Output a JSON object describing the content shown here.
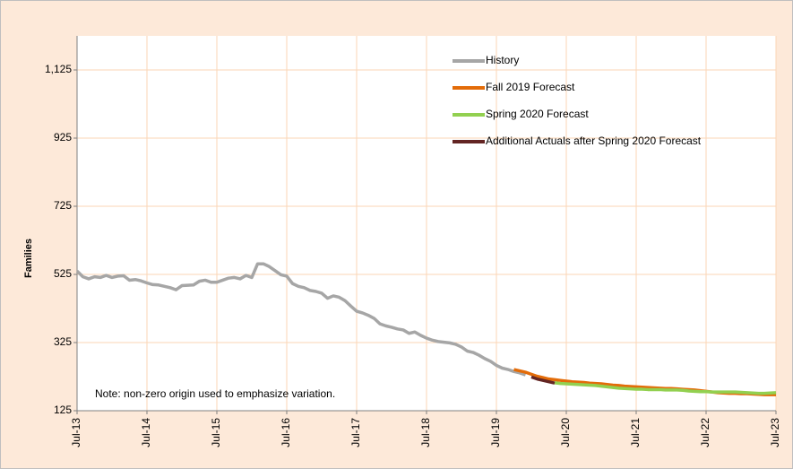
{
  "chart_data": {
    "type": "line",
    "y_label": "Families",
    "annotation": "Note: non-zero origin used to emphasize variation.",
    "legend": "upper right",
    "grid": true,
    "ylim": [
      125,
      1225
    ],
    "yticks": [
      125,
      325,
      525,
      725,
      925,
      {
        "value": 1125,
        "label": "1,125"
      }
    ],
    "categories": [
      "Jul-13",
      null,
      null,
      null,
      null,
      null,
      null,
      null,
      null,
      null,
      null,
      null,
      "Jul-14",
      null,
      null,
      null,
      null,
      null,
      null,
      null,
      null,
      null,
      null,
      null,
      "Jul-15",
      null,
      null,
      null,
      null,
      null,
      null,
      null,
      null,
      null,
      null,
      null,
      "Jul-16",
      null,
      null,
      null,
      null,
      null,
      null,
      null,
      null,
      null,
      null,
      null,
      "Jul-17",
      null,
      null,
      null,
      null,
      null,
      null,
      null,
      null,
      null,
      null,
      null,
      "Jul-18",
      null,
      null,
      null,
      null,
      null,
      null,
      null,
      null,
      null,
      null,
      null,
      "Jul-19",
      null,
      null,
      null,
      null,
      null,
      null,
      null,
      null,
      null,
      null,
      null,
      "Jul-20",
      null,
      null,
      null,
      null,
      null,
      null,
      null,
      null,
      null,
      null,
      null,
      "Jul-21",
      null,
      null,
      null,
      null,
      null,
      null,
      null,
      null,
      null,
      null,
      null,
      "Jul-22",
      null,
      null,
      null,
      null,
      null,
      null,
      null,
      null,
      null,
      null,
      null,
      "Jul-23"
    ],
    "series": [
      {
        "name": "History",
        "color": "#a6a6a6",
        "values": [
          535,
          518,
          512,
          518,
          516,
          522,
          516,
          520,
          521,
          508,
          510,
          506,
          500,
          495,
          494,
          490,
          486,
          480,
          492,
          493,
          494,
          505,
          508,
          502,
          502,
          508,
          514,
          516,
          512,
          522,
          516,
          556,
          556,
          548,
          536,
          524,
          520,
          498,
          490,
          486,
          478,
          475,
          470,
          455,
          462,
          458,
          448,
          432,
          417,
          412,
          405,
          396,
          380,
          374,
          370,
          365,
          362,
          352,
          356,
          346,
          338,
          332,
          328,
          326,
          324,
          320,
          312,
          300,
          296,
          288,
          278,
          270,
          258,
          250,
          246,
          240,
          236,
          230,
          null,
          null,
          null,
          null,
          null,
          null,
          null,
          null,
          null,
          null,
          null,
          null,
          null,
          null,
          null,
          null,
          null,
          null,
          null,
          null,
          null,
          null,
          null,
          null,
          null,
          null,
          null,
          null,
          null,
          null,
          null,
          null,
          null,
          null,
          null,
          null,
          null,
          null,
          null,
          null,
          null,
          null,
          null
        ]
      },
      {
        "name": "Fall 2019 Forecast",
        "color": "#e36c09",
        "values": [
          null,
          null,
          null,
          null,
          null,
          null,
          null,
          null,
          null,
          null,
          null,
          null,
          null,
          null,
          null,
          null,
          null,
          null,
          null,
          null,
          null,
          null,
          null,
          null,
          null,
          null,
          null,
          null,
          null,
          null,
          null,
          null,
          null,
          null,
          null,
          null,
          null,
          null,
          null,
          null,
          null,
          null,
          null,
          null,
          null,
          null,
          null,
          null,
          null,
          null,
          null,
          null,
          null,
          null,
          null,
          null,
          null,
          null,
          null,
          null,
          null,
          null,
          null,
          null,
          null,
          null,
          null,
          null,
          null,
          null,
          null,
          null,
          null,
          null,
          null,
          246,
          242,
          238,
          232,
          226,
          222,
          218,
          216,
          214,
          212,
          210,
          209,
          208,
          206,
          205,
          204,
          202,
          200,
          199,
          197,
          196,
          195,
          194,
          193,
          192,
          191,
          190,
          190,
          189,
          188,
          187,
          186,
          184,
          182,
          180,
          178,
          177,
          176,
          176,
          175,
          175,
          174,
          173,
          172,
          172,
          172
        ]
      },
      {
        "name": "Spring 2020 Forecast",
        "color": "#92d050",
        "values": [
          null,
          null,
          null,
          null,
          null,
          null,
          null,
          null,
          null,
          null,
          null,
          null,
          null,
          null,
          null,
          null,
          null,
          null,
          null,
          null,
          null,
          null,
          null,
          null,
          null,
          null,
          null,
          null,
          null,
          null,
          null,
          null,
          null,
          null,
          null,
          null,
          null,
          null,
          null,
          null,
          null,
          null,
          null,
          null,
          null,
          null,
          null,
          null,
          null,
          null,
          null,
          null,
          null,
          null,
          null,
          null,
          null,
          null,
          null,
          null,
          null,
          null,
          null,
          null,
          null,
          null,
          null,
          null,
          null,
          null,
          null,
          null,
          null,
          null,
          null,
          null,
          null,
          null,
          null,
          null,
          null,
          null,
          207,
          205,
          204,
          203,
          202,
          201,
          200,
          199,
          197,
          195,
          193,
          191,
          190,
          189,
          188,
          188,
          187,
          187,
          187,
          186,
          186,
          186,
          185,
          183,
          182,
          181,
          181,
          180,
          180,
          180,
          180,
          180,
          179,
          178,
          177,
          176,
          176,
          177,
          178
        ]
      },
      {
        "name": "Additional Actuals after Spring 2020 Forecast",
        "color": "#632523",
        "values": [
          null,
          null,
          null,
          null,
          null,
          null,
          null,
          null,
          null,
          null,
          null,
          null,
          null,
          null,
          null,
          null,
          null,
          null,
          null,
          null,
          null,
          null,
          null,
          null,
          null,
          null,
          null,
          null,
          null,
          null,
          null,
          null,
          null,
          null,
          null,
          null,
          null,
          null,
          null,
          null,
          null,
          null,
          null,
          null,
          null,
          null,
          null,
          null,
          null,
          null,
          null,
          null,
          null,
          null,
          null,
          null,
          null,
          null,
          null,
          null,
          null,
          null,
          null,
          null,
          null,
          null,
          null,
          null,
          null,
          null,
          null,
          null,
          null,
          null,
          null,
          null,
          null,
          null,
          224,
          218,
          214,
          210,
          206,
          null,
          null,
          null,
          null,
          null,
          null,
          null,
          null,
          null,
          null,
          null,
          null,
          null,
          null,
          null,
          null,
          null,
          null,
          null,
          null,
          null,
          null,
          null,
          null,
          null,
          null,
          null,
          null,
          null,
          null,
          null,
          null,
          null,
          null,
          null,
          null,
          null,
          null
        ]
      }
    ]
  }
}
